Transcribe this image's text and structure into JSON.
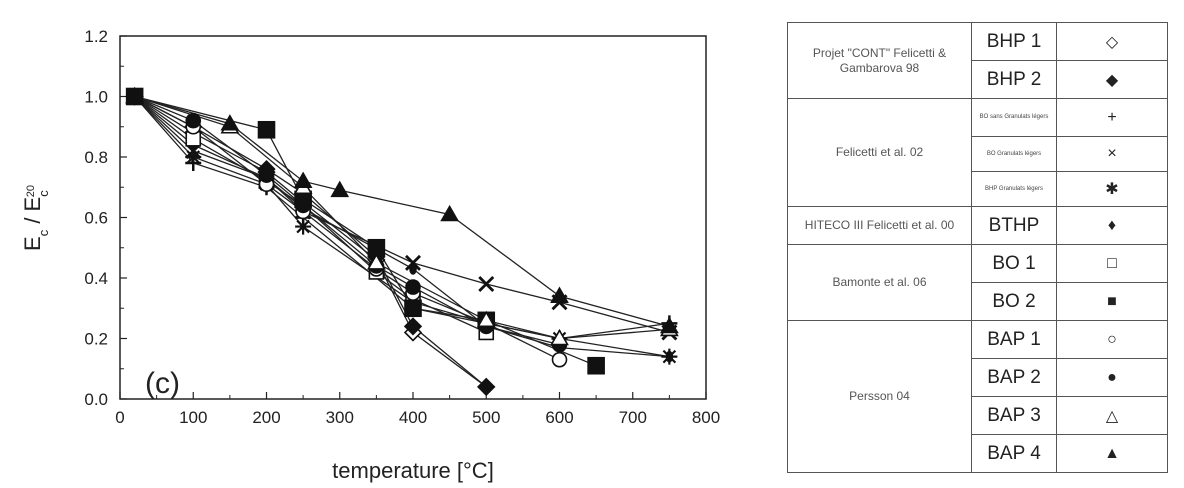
{
  "chart_data": {
    "type": "line",
    "panel_label": "(c)",
    "xlabel": "temperature [°C]",
    "ylabel": {
      "main": "E",
      "sub1": "c",
      "slash": " / E",
      "sub2": "c",
      "sup2": "20"
    },
    "xlim": [
      0,
      800
    ],
    "ylim": [
      0,
      1.2
    ],
    "x_ticks": [
      "0",
      "100",
      "200",
      "300",
      "400",
      "500",
      "600",
      "700",
      "800"
    ],
    "y_ticks": [
      "0.0",
      "0.2",
      "0.4",
      "0.6",
      "0.8",
      "1.0",
      "1.2"
    ],
    "series": [
      {
        "name": "BHP 1",
        "marker": "diamond-open",
        "points": [
          [
            20,
            1.0
          ],
          [
            100,
            0.88
          ],
          [
            200,
            0.75
          ],
          [
            250,
            0.65
          ],
          [
            350,
            0.46
          ],
          [
            400,
            0.22
          ],
          [
            500,
            0.04
          ]
        ]
      },
      {
        "name": "BHP 2",
        "marker": "diamond-filled",
        "points": [
          [
            20,
            1.0
          ],
          [
            100,
            0.9
          ],
          [
            200,
            0.76
          ],
          [
            250,
            0.68
          ],
          [
            350,
            0.47
          ],
          [
            400,
            0.24
          ],
          [
            500,
            0.04
          ]
        ]
      },
      {
        "name": "BO sans Granulats légers",
        "marker": "plus",
        "points": [
          [
            20,
            1.0
          ],
          [
            100,
            0.78
          ],
          [
            200,
            0.7
          ],
          [
            250,
            0.6
          ],
          [
            400,
            0.3
          ],
          [
            500,
            0.25
          ],
          [
            600,
            0.2
          ],
          [
            750,
            0.25
          ]
        ]
      },
      {
        "name": "BO Granulats légers",
        "marker": "cross",
        "points": [
          [
            20,
            1.0
          ],
          [
            100,
            0.82
          ],
          [
            200,
            0.73
          ],
          [
            250,
            0.62
          ],
          [
            400,
            0.45
          ],
          [
            500,
            0.38
          ],
          [
            600,
            0.32
          ],
          [
            750,
            0.22
          ]
        ]
      },
      {
        "name": "BHP Granulats légers",
        "marker": "star",
        "points": [
          [
            20,
            1.0
          ],
          [
            100,
            0.8
          ],
          [
            200,
            0.71
          ],
          [
            250,
            0.57
          ],
          [
            400,
            0.32
          ],
          [
            500,
            0.25
          ],
          [
            600,
            0.2
          ],
          [
            750,
            0.14
          ]
        ]
      },
      {
        "name": "BTHP",
        "marker": "dot",
        "points": [
          [
            20,
            1.0
          ],
          [
            100,
            0.84
          ],
          [
            200,
            0.73
          ],
          [
            250,
            0.63
          ],
          [
            400,
            0.43
          ],
          [
            500,
            0.24
          ],
          [
            600,
            0.17
          ],
          [
            750,
            0.14
          ]
        ]
      },
      {
        "name": "BO 1",
        "marker": "square-open",
        "points": [
          [
            20,
            1.0
          ],
          [
            100,
            0.86
          ],
          [
            200,
            0.72
          ],
          [
            250,
            0.64
          ],
          [
            350,
            0.42
          ],
          [
            400,
            0.33
          ],
          [
            500,
            0.22
          ]
        ]
      },
      {
        "name": "BO 2",
        "marker": "square-filled",
        "points": [
          [
            20,
            1.0
          ],
          [
            200,
            0.89
          ],
          [
            250,
            0.66
          ],
          [
            350,
            0.5
          ],
          [
            400,
            0.3
          ],
          [
            500,
            0.26
          ],
          [
            650,
            0.11
          ]
        ]
      },
      {
        "name": "BAP 1",
        "marker": "circle-open",
        "points": [
          [
            20,
            1.0
          ],
          [
            100,
            0.9
          ],
          [
            200,
            0.71
          ],
          [
            250,
            0.62
          ],
          [
            350,
            0.43
          ],
          [
            400,
            0.35
          ],
          [
            500,
            0.25
          ],
          [
            600,
            0.13
          ]
        ]
      },
      {
        "name": "BAP 2",
        "marker": "circle-filled",
        "points": [
          [
            20,
            1.0
          ],
          [
            100,
            0.92
          ],
          [
            200,
            0.74
          ],
          [
            250,
            0.64
          ],
          [
            350,
            0.44
          ],
          [
            400,
            0.37
          ],
          [
            500,
            0.24
          ],
          [
            600,
            0.18
          ]
        ]
      },
      {
        "name": "BAP 3",
        "marker": "triangle-open",
        "points": [
          [
            20,
            1.0
          ],
          [
            150,
            0.9
          ],
          [
            250,
            0.7
          ],
          [
            350,
            0.45
          ],
          [
            500,
            0.26
          ],
          [
            600,
            0.2
          ],
          [
            750,
            0.23
          ]
        ]
      },
      {
        "name": "BAP 4",
        "marker": "triangle-filled",
        "points": [
          [
            20,
            1.0
          ],
          [
            150,
            0.91
          ],
          [
            250,
            0.72
          ],
          [
            300,
            0.69
          ],
          [
            450,
            0.61
          ],
          [
            600,
            0.34
          ],
          [
            750,
            0.24
          ]
        ]
      }
    ]
  },
  "legend": {
    "groups": [
      {
        "source": "Projet \"CONT\" Felicetti & Gambarova 98",
        "rows": [
          {
            "code": "BHP 1",
            "symbol": "◇"
          },
          {
            "code": "BHP 2",
            "symbol": "◆"
          }
        ]
      },
      {
        "source": "Felicetti et al. 02",
        "rows": [
          {
            "code": "BO sans Granulats légers",
            "symbol": "+",
            "small": true
          },
          {
            "code": "BO Granulats légers",
            "symbol": "×",
            "small": true
          },
          {
            "code": "BHP Granulats légers",
            "symbol": "✱",
            "small": true
          }
        ]
      },
      {
        "source": "HITECO III Felicetti et al. 00",
        "rows": [
          {
            "code": "BTHP",
            "symbol": "♦"
          }
        ]
      },
      {
        "source": "Bamonte et al. 06",
        "rows": [
          {
            "code": "BO 1",
            "symbol": "□"
          },
          {
            "code": "BO 2",
            "symbol": "■"
          }
        ]
      },
      {
        "source": "Persson 04",
        "rows": [
          {
            "code": "BAP 1",
            "symbol": "○"
          },
          {
            "code": "BAP 2",
            "symbol": "●"
          },
          {
            "code": "BAP 3",
            "symbol": "△"
          },
          {
            "code": "BAP 4",
            "symbol": "▲"
          }
        ]
      }
    ]
  }
}
